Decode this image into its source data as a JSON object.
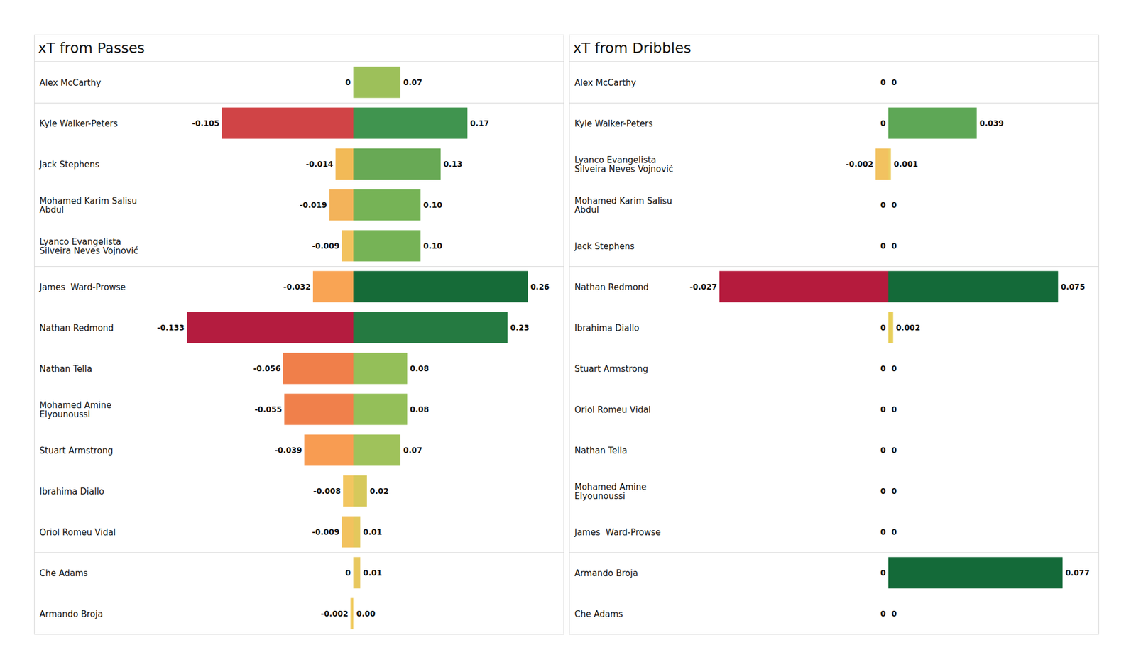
{
  "chart_data": [
    {
      "type": "bar",
      "orientation": "horizontal",
      "title": "xT from Passes",
      "data_labels": true,
      "tick_labels": "y",
      "categories": [
        "Alex McCarthy",
        "Kyle Walker-Peters",
        "Jack Stephens",
        "Mohamed Karim Salisu\nAbdul",
        "Lyanco Evangelista\nSilveira Neves Vojnović",
        "James  Ward-Prowse",
        "Nathan Redmond",
        "Nathan Tella",
        "Mohamed Amine\nElyounoussi",
        "Stuart Armstrong",
        "Ibrahima Diallo",
        "Oriol Romeu Vidal",
        "Che Adams",
        "Armando Broja"
      ],
      "group_sizes": [
        1,
        4,
        7,
        2
      ],
      "series": [
        {
          "values": [
            0,
            -0.105,
            -0.014,
            -0.019,
            -0.009,
            -0.032,
            -0.133,
            -0.056,
            -0.055,
            -0.039,
            -0.008,
            -0.009,
            0,
            -0.002
          ],
          "value_labels": [
            "0",
            "-0.105",
            "-0.014",
            "-0.019",
            "-0.009",
            "-0.032",
            "-0.133",
            "-0.056",
            "-0.055",
            "-0.039",
            "-0.008",
            "-0.009",
            "0",
            "-0.002"
          ],
          "colors": [
            "#f2ca60",
            "#d04446",
            "#f2ba57",
            "#f3b35a",
            "#f2c25e",
            "#f9a454",
            "#b41c3f",
            "#f07f4a",
            "#f0804b",
            "#f89c52",
            "#f2c660",
            "#f2c25e",
            "#f2ca60",
            "#f0cb60"
          ],
          "xlim": [
            -0.15,
            0
          ]
        },
        {
          "values": [
            0.07,
            0.17,
            0.13,
            0.1,
            0.1,
            0.26,
            0.23,
            0.08,
            0.08,
            0.07,
            0.02,
            0.01,
            0.01,
            0
          ],
          "value_labels": [
            "0.07",
            "0.17",
            "0.13",
            "0.10",
            "0.10",
            "0.26",
            "0.23",
            "0.08",
            "0.08",
            "0.07",
            "0.02",
            "0.01",
            "0.01",
            "0.00"
          ],
          "colors": [
            "#9dc05a",
            "#40944f",
            "#68a955",
            "#76b356",
            "#76b356",
            "#166b38",
            "#257a41",
            "#94bf59",
            "#94bf59",
            "#9fc25b",
            "#d6c95b",
            "#e4c85c",
            "#e8c85e",
            "#efc860"
          ],
          "xlim": [
            0,
            0.28
          ]
        }
      ]
    },
    {
      "type": "bar",
      "orientation": "horizontal",
      "title": "xT from Dribbles",
      "data_labels": true,
      "tick_labels": "y",
      "categories": [
        "Alex McCarthy",
        "Kyle Walker-Peters",
        "Lyanco Evangelista\nSilveira Neves Vojnović",
        "Mohamed Karim Salisu\nAbdul",
        "Jack Stephens",
        "Nathan Redmond",
        "Ibrahima Diallo",
        "Stuart Armstrong",
        "Oriol Romeu Vidal",
        "Nathan Tella",
        "Mohamed Amine\nElyounoussi",
        "James  Ward-Prowse",
        "Armando Broja",
        "Che Adams"
      ],
      "group_sizes": [
        1,
        4,
        7,
        2
      ],
      "series": [
        {
          "values": [
            0,
            0,
            -0.002,
            0,
            0,
            -0.027,
            0,
            0,
            0,
            0,
            0,
            0,
            0,
            0
          ],
          "value_labels": [
            "0",
            "0",
            "-0.002",
            "0",
            "0",
            "-0.027",
            "0",
            "0",
            "0",
            "0",
            "0",
            "0",
            "0",
            "0"
          ],
          "colors": [
            "#f2d15c",
            "#f2d15c",
            "#f2c260",
            "#f2d15c",
            "#f2d15c",
            "#b51b3d",
            "#f2d15c",
            "#f2d15c",
            "#f2d15c",
            "#f2d15c",
            "#f2d15c",
            "#f2d15c",
            "#f2d15c",
            "#f2d15c"
          ],
          "xlim": [
            -0.03,
            0
          ]
        },
        {
          "values": [
            0,
            0.039,
            0.001,
            0,
            0,
            0.075,
            0.002,
            0,
            0,
            0,
            0,
            0,
            0.077,
            0
          ],
          "value_labels": [
            "0",
            "0.039",
            "0.001",
            "0",
            "0",
            "0.075",
            "0.002",
            "0",
            "0",
            "0",
            "0",
            "0",
            "0.077",
            "0"
          ],
          "colors": [
            "#f2d15c",
            "#5ea756",
            "#eccd62",
            "#f2d15c",
            "#f2d15c",
            "#146a39",
            "#e8cf5a",
            "#f2d15c",
            "#f2d15c",
            "#f2d15c",
            "#f2d15c",
            "#f2d15c",
            "#146a39",
            "#f2d15c"
          ],
          "xlim": [
            0,
            0.083
          ]
        }
      ]
    }
  ]
}
